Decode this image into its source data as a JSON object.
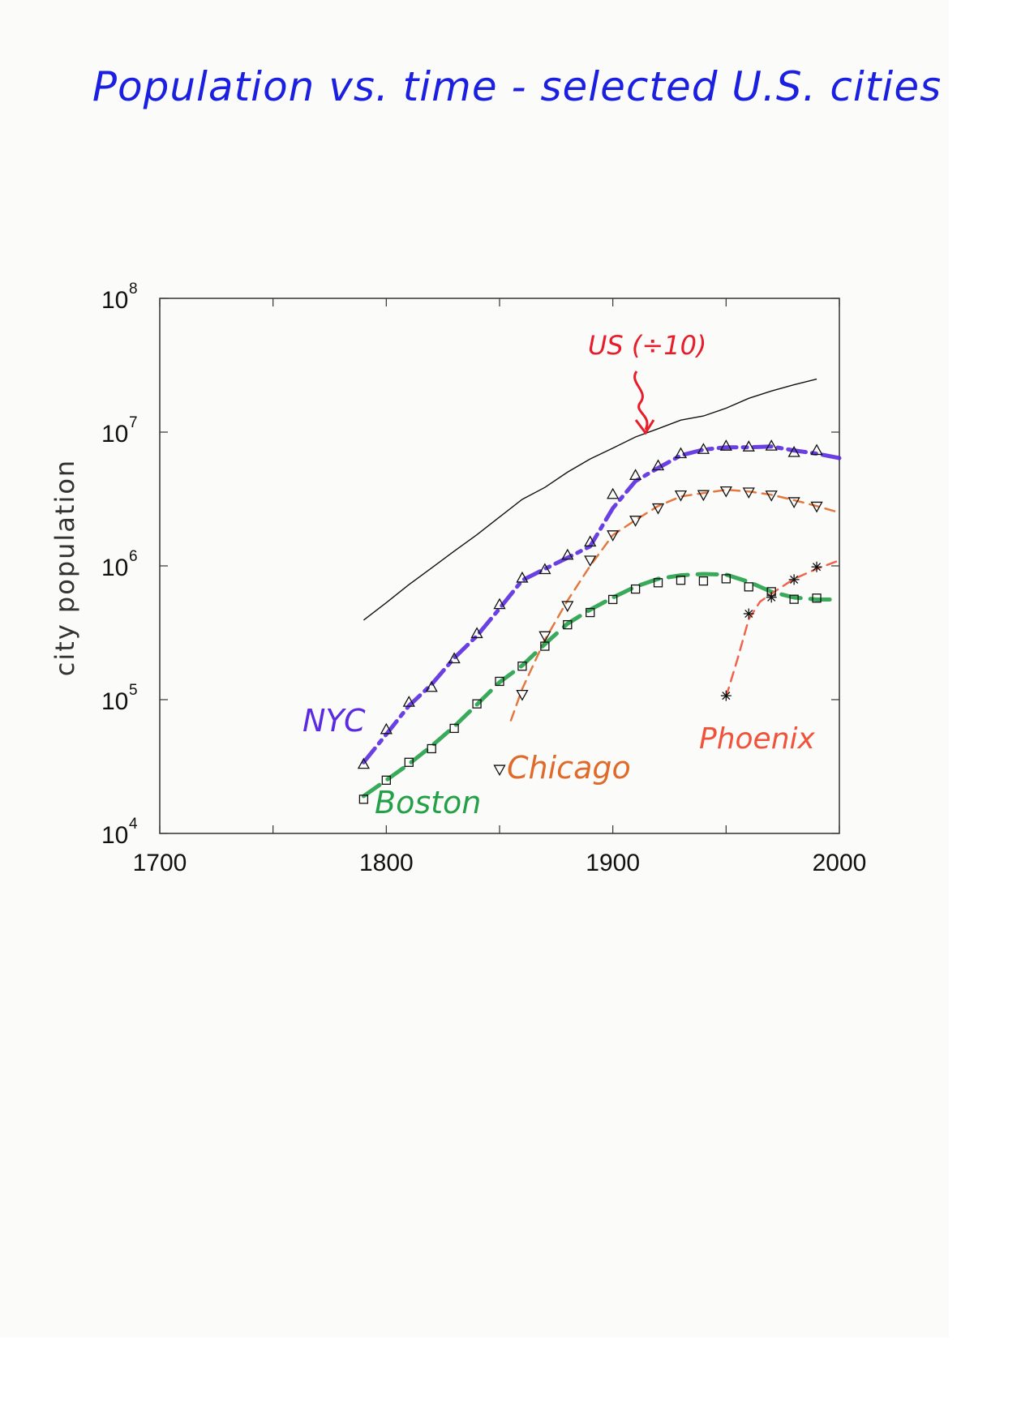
{
  "chart_data": {
    "type": "line",
    "title": "Population vs. time - selected U.S. cities",
    "xlabel": "",
    "ylabel": "city population",
    "xlim": [
      1700,
      2000
    ],
    "ylim": [
      10000,
      100000000
    ],
    "yscale": "log",
    "x_ticks": [
      "1700",
      "1800",
      "1900",
      "2000"
    ],
    "y_ticks": [
      {
        "value": 10000,
        "base": "10",
        "exp": "4"
      },
      {
        "value": 100000,
        "base": "10",
        "exp": "5"
      },
      {
        "value": 1000000,
        "base": "10",
        "exp": "6"
      },
      {
        "value": 10000000,
        "base": "10",
        "exp": "7"
      },
      {
        "value": 100000000,
        "base": "10",
        "exp": "8"
      }
    ],
    "grid": false,
    "legend": "none",
    "series": [
      {
        "name": "US (÷10)",
        "color": "#111111",
        "marker": "none",
        "x": [
          1790,
          1800,
          1810,
          1820,
          1830,
          1840,
          1850,
          1860,
          1870,
          1880,
          1890,
          1900,
          1910,
          1920,
          1930,
          1940,
          1950,
          1960,
          1970,
          1980,
          1990
        ],
        "y": [
          393000,
          531000,
          724000,
          964000,
          1290000,
          1710000,
          2320000,
          3140000,
          3860000,
          5020000,
          6300000,
          7600000,
          9200000,
          10600000,
          12300000,
          13200000,
          15100000,
          17900000,
          20300000,
          22600000,
          24900000
        ]
      },
      {
        "name": "NYC",
        "color": "#5a2be0",
        "marker": "triangle-up",
        "x": [
          1790,
          1800,
          1810,
          1820,
          1830,
          1840,
          1850,
          1860,
          1870,
          1880,
          1890,
          1900,
          1910,
          1920,
          1930,
          1940,
          1950,
          1960,
          1970,
          1980,
          1990
        ],
        "y": [
          33000,
          60000,
          96000,
          124000,
          203000,
          313000,
          516000,
          814000,
          942000,
          1206000,
          1515000,
          3437000,
          4767000,
          5620000,
          6930000,
          7455000,
          7892000,
          7782000,
          7896000,
          7072000,
          7323000
        ],
        "trend": [
          [
            1790,
            34000
          ],
          [
            1800,
            55000
          ],
          [
            1810,
            90000
          ],
          [
            1820,
            130000
          ],
          [
            1830,
            205000
          ],
          [
            1840,
            300000
          ],
          [
            1850,
            480000
          ],
          [
            1860,
            780000
          ],
          [
            1870,
            950000
          ],
          [
            1880,
            1150000
          ],
          [
            1890,
            1400000
          ],
          [
            1900,
            2700000
          ],
          [
            1910,
            4300000
          ],
          [
            1920,
            5400000
          ],
          [
            1930,
            6700000
          ],
          [
            1940,
            7400000
          ],
          [
            1950,
            7700000
          ],
          [
            1960,
            7700000
          ],
          [
            1970,
            7800000
          ],
          [
            1980,
            7300000
          ],
          [
            1990,
            6900000
          ],
          [
            2000,
            6400000
          ]
        ]
      },
      {
        "name": "Chicago",
        "color": "#e06a2a",
        "marker": "triangle-down",
        "x": [
          1850,
          1860,
          1870,
          1880,
          1890,
          1900,
          1910,
          1920,
          1930,
          1940,
          1950,
          1960,
          1970,
          1980,
          1990
        ],
        "y": [
          30000,
          109000,
          299000,
          503000,
          1100000,
          1699000,
          2185000,
          2702000,
          3376000,
          3397000,
          3621000,
          3550000,
          3369000,
          3005000,
          2784000
        ],
        "trend": [
          [
            1855,
            70000
          ],
          [
            1860,
            120000
          ],
          [
            1870,
            280000
          ],
          [
            1880,
            550000
          ],
          [
            1890,
            1000000
          ],
          [
            1900,
            1700000
          ],
          [
            1910,
            2200000
          ],
          [
            1920,
            2800000
          ],
          [
            1930,
            3300000
          ],
          [
            1940,
            3500000
          ],
          [
            1950,
            3700000
          ],
          [
            1960,
            3600000
          ],
          [
            1970,
            3400000
          ],
          [
            1980,
            3100000
          ],
          [
            1990,
            2800000
          ],
          [
            2000,
            2500000
          ]
        ]
      },
      {
        "name": "Boston",
        "color": "#24a048",
        "marker": "square",
        "x": [
          1790,
          1800,
          1810,
          1820,
          1830,
          1840,
          1850,
          1860,
          1870,
          1880,
          1890,
          1900,
          1910,
          1920,
          1930,
          1940,
          1950,
          1960,
          1970,
          1980,
          1990
        ],
        "y": [
          18000,
          25000,
          34000,
          43000,
          61000,
          93000,
          137000,
          178000,
          251000,
          363000,
          448000,
          561000,
          671000,
          748000,
          781000,
          771000,
          801000,
          697000,
          641000,
          563000,
          574000
        ],
        "trend": [
          [
            1790,
            19000
          ],
          [
            1800,
            25000
          ],
          [
            1810,
            33000
          ],
          [
            1820,
            45000
          ],
          [
            1830,
            63000
          ],
          [
            1840,
            92000
          ],
          [
            1850,
            135000
          ],
          [
            1860,
            180000
          ],
          [
            1870,
            260000
          ],
          [
            1880,
            370000
          ],
          [
            1890,
            470000
          ],
          [
            1900,
            580000
          ],
          [
            1910,
            700000
          ],
          [
            1920,
            800000
          ],
          [
            1930,
            850000
          ],
          [
            1940,
            870000
          ],
          [
            1950,
            860000
          ],
          [
            1960,
            760000
          ],
          [
            1970,
            640000
          ],
          [
            1980,
            580000
          ],
          [
            1990,
            560000
          ],
          [
            2000,
            560000
          ]
        ]
      },
      {
        "name": "Phoenix",
        "color": "#f0523a",
        "marker": "asterisk",
        "x": [
          1950,
          1960,
          1970,
          1980,
          1990
        ],
        "y": [
          107000,
          439000,
          582000,
          790000,
          983000
        ],
        "trend": [
          [
            1950,
            105000
          ],
          [
            1955,
            200000
          ],
          [
            1960,
            400000
          ],
          [
            1965,
            540000
          ],
          [
            1970,
            620000
          ],
          [
            1980,
            800000
          ],
          [
            1990,
            950000
          ],
          [
            2000,
            1100000
          ]
        ]
      }
    ],
    "annotations": [
      {
        "text": "US (÷10)",
        "color": "#e81c2a"
      },
      {
        "text": "NYC",
        "color": "#5a2be0"
      },
      {
        "text": "Chicago",
        "color": "#e06a2a"
      },
      {
        "text": "Boston",
        "color": "#24a048"
      },
      {
        "text": "Phoenix",
        "color": "#f0523a"
      }
    ]
  },
  "colors": {
    "title": "#1a1fe0",
    "axis": "#111111"
  }
}
